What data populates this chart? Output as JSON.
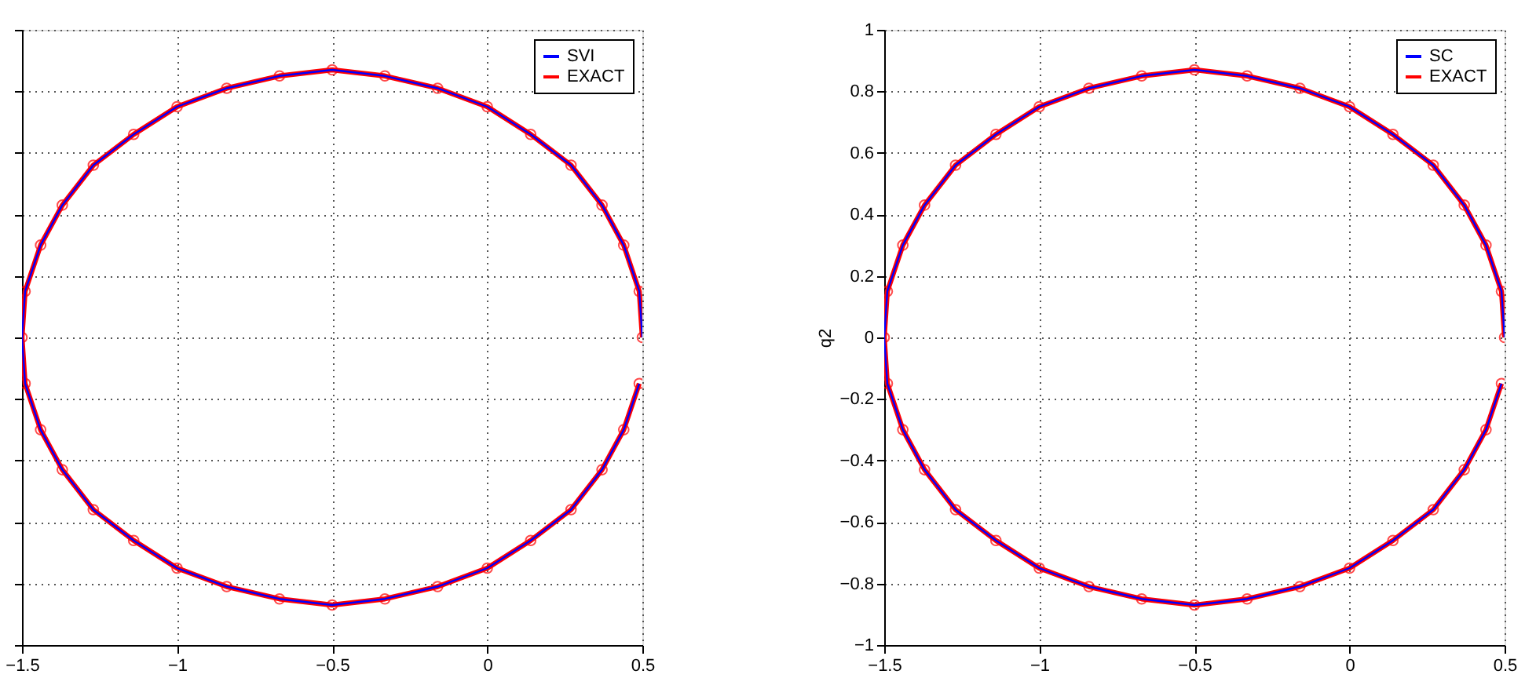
{
  "chart_data": [
    {
      "type": "line",
      "xlim": [
        -1.5,
        0.5
      ],
      "xticks": [
        -1.5,
        -1,
        -0.5,
        0,
        0.5
      ],
      "ylim": [
        -1,
        1
      ],
      "yticks": [
        -1,
        -0.8,
        -0.6,
        -0.4,
        -0.2,
        0,
        0.2,
        0.4,
        0.6,
        0.8,
        1
      ],
      "tick_labels": "x",
      "grid": true,
      "legend": "top right",
      "line_style": "solid",
      "series": [
        {
          "name": "SVI",
          "color": "#0000ff",
          "marker": "none",
          "x": [
            0.5,
            0.49,
            0.44,
            0.37,
            0.27,
            0.14,
            0.0,
            -0.16,
            -0.33,
            -0.5,
            -0.67,
            -0.84,
            -1.0,
            -1.14,
            -1.27,
            -1.37,
            -1.44,
            -1.49,
            -1.5,
            -1.49,
            -1.44,
            -1.37,
            -1.27,
            -1.14,
            -1.0,
            -0.84,
            -0.67,
            -0.5,
            -0.33,
            -0.16,
            0.0,
            0.14,
            0.27,
            0.37,
            0.44,
            0.49
          ],
          "values": [
            0,
            0.15,
            0.3,
            0.43,
            0.56,
            0.66,
            0.75,
            0.81,
            0.85,
            0.87,
            0.85,
            0.81,
            0.75,
            0.66,
            0.56,
            0.43,
            0.3,
            0.15,
            0,
            -0.15,
            -0.3,
            -0.43,
            -0.56,
            -0.66,
            -0.75,
            -0.81,
            -0.85,
            -0.87,
            -0.85,
            -0.81,
            -0.75,
            -0.66,
            -0.56,
            -0.43,
            -0.3,
            -0.15
          ]
        },
        {
          "name": "EXACT",
          "color": "#ff0000",
          "marker": "circle",
          "x": [
            0.5,
            0.49,
            0.44,
            0.37,
            0.27,
            0.14,
            0.0,
            -0.16,
            -0.33,
            -0.5,
            -0.67,
            -0.84,
            -1.0,
            -1.14,
            -1.27,
            -1.37,
            -1.44,
            -1.49,
            -1.5,
            -1.49,
            -1.44,
            -1.37,
            -1.27,
            -1.14,
            -1.0,
            -0.84,
            -0.67,
            -0.5,
            -0.33,
            -0.16,
            0.0,
            0.14,
            0.27,
            0.37,
            0.44,
            0.49
          ],
          "values": [
            0,
            0.15,
            0.3,
            0.43,
            0.56,
            0.66,
            0.75,
            0.81,
            0.85,
            0.87,
            0.85,
            0.81,
            0.75,
            0.66,
            0.56,
            0.43,
            0.3,
            0.15,
            0,
            -0.15,
            -0.3,
            -0.43,
            -0.56,
            -0.66,
            -0.75,
            -0.81,
            -0.85,
            -0.87,
            -0.85,
            -0.81,
            -0.75,
            -0.66,
            -0.56,
            -0.43,
            -0.3,
            -0.15
          ]
        }
      ]
    },
    {
      "type": "line",
      "ylabel": "q2",
      "xlim": [
        -1.5,
        0.5
      ],
      "xticks": [
        -1.5,
        -1,
        -0.5,
        0,
        0.5
      ],
      "ylim": [
        -1,
        1
      ],
      "yticks": [
        -1,
        -0.8,
        -0.6,
        -0.4,
        -0.2,
        0,
        0.2,
        0.4,
        0.6,
        0.8,
        1
      ],
      "grid": true,
      "legend": "top right",
      "line_style": "solid",
      "series": [
        {
          "name": "SC",
          "color": "#0000ff",
          "marker": "none",
          "x": [
            0.5,
            0.49,
            0.44,
            0.37,
            0.27,
            0.14,
            0.0,
            -0.16,
            -0.33,
            -0.5,
            -0.67,
            -0.84,
            -1.0,
            -1.14,
            -1.27,
            -1.37,
            -1.44,
            -1.49,
            -1.5,
            -1.49,
            -1.44,
            -1.37,
            -1.27,
            -1.14,
            -1.0,
            -0.84,
            -0.67,
            -0.5,
            -0.33,
            -0.16,
            0.0,
            0.14,
            0.27,
            0.37,
            0.44,
            0.49
          ],
          "values": [
            0,
            0.15,
            0.3,
            0.43,
            0.56,
            0.66,
            0.75,
            0.81,
            0.85,
            0.87,
            0.85,
            0.81,
            0.75,
            0.66,
            0.56,
            0.43,
            0.3,
            0.15,
            0,
            -0.15,
            -0.3,
            -0.43,
            -0.56,
            -0.66,
            -0.75,
            -0.81,
            -0.85,
            -0.87,
            -0.85,
            -0.81,
            -0.75,
            -0.66,
            -0.56,
            -0.43,
            -0.3,
            -0.15
          ]
        },
        {
          "name": "EXACT",
          "color": "#ff0000",
          "marker": "circle",
          "x": [
            0.5,
            0.49,
            0.44,
            0.37,
            0.27,
            0.14,
            0.0,
            -0.16,
            -0.33,
            -0.5,
            -0.67,
            -0.84,
            -1.0,
            -1.14,
            -1.27,
            -1.37,
            -1.44,
            -1.49,
            -1.5,
            -1.49,
            -1.44,
            -1.37,
            -1.27,
            -1.14,
            -1.0,
            -0.84,
            -0.67,
            -0.5,
            -0.33,
            -0.16,
            0.0,
            0.14,
            0.27,
            0.37,
            0.44,
            0.49
          ],
          "values": [
            0,
            0.15,
            0.3,
            0.43,
            0.56,
            0.66,
            0.75,
            0.81,
            0.85,
            0.87,
            0.85,
            0.81,
            0.75,
            0.66,
            0.56,
            0.43,
            0.3,
            0.15,
            0,
            -0.15,
            -0.3,
            -0.43,
            -0.56,
            -0.66,
            -0.75,
            -0.81,
            -0.85,
            -0.87,
            -0.85,
            -0.81,
            -0.75,
            -0.66,
            -0.56,
            -0.43,
            -0.3,
            -0.15
          ]
        }
      ]
    }
  ]
}
